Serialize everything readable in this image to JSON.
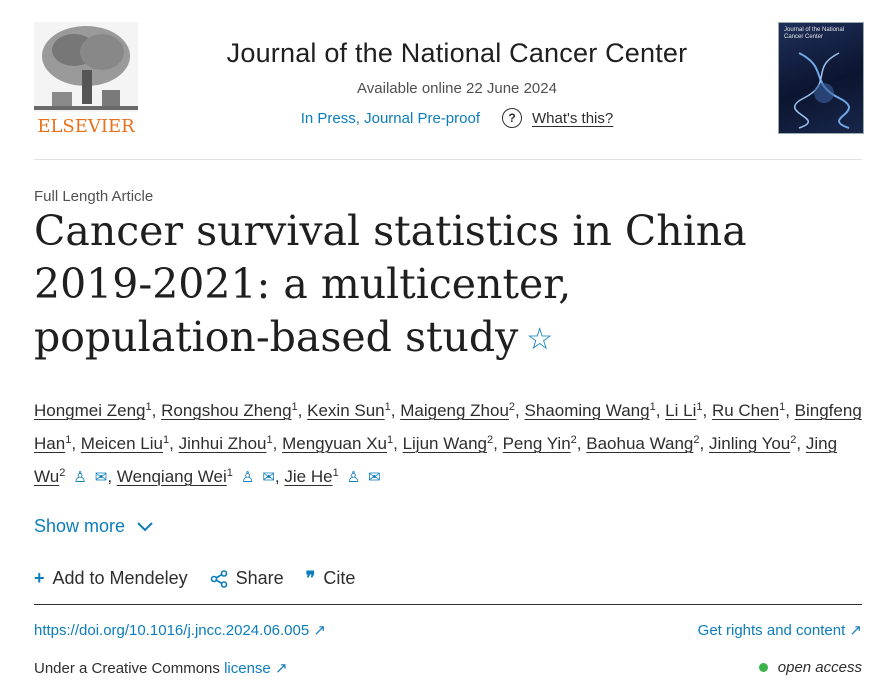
{
  "header": {
    "publisher": "ELSEVIER",
    "journal_title": "Journal of the National Cancer Center",
    "available_online": "Available online 22 June 2024",
    "press_status": "In Press, Journal Pre-proof",
    "whats_this": "What's this?",
    "cover_text": "Journal of the National Cancer Center"
  },
  "article": {
    "type": "Full Length Article",
    "title": "Cancer survival statistics in China 2019-2021: a multicenter, population-based study",
    "star_icon": "☆"
  },
  "authors": [
    {
      "name": "Hongmei Zeng",
      "sup": "1",
      "sep": ","
    },
    {
      "name": "Rongshou Zheng",
      "sup": "1",
      "sep": ","
    },
    {
      "name": "Kexin Sun",
      "sup": "1",
      "sep": ","
    },
    {
      "name": "Maigeng Zhou",
      "sup": "2",
      "sep": ","
    },
    {
      "name": "Shaoming Wang",
      "sup": "1",
      "sep": ","
    },
    {
      "name": "Li Li",
      "sup": "1",
      "sep": ","
    },
    {
      "name": "Ru Chen",
      "sup": "1",
      "sep": ","
    },
    {
      "name": "Bingfeng Han",
      "sup": "1",
      "sep": ","
    },
    {
      "name": "Meicen Liu",
      "sup": "1",
      "sep": ","
    },
    {
      "name": "Jinhui Zhou",
      "sup": "1",
      "sep": ","
    },
    {
      "name": "Mengyuan Xu",
      "sup": "1",
      "sep": ","
    },
    {
      "name": "Lijun Wang",
      "sup": "2",
      "sep": ","
    },
    {
      "name": "Peng Yin",
      "sup": "2",
      "sep": ","
    },
    {
      "name": "Baohua Wang",
      "sup": "2",
      "sep": ","
    },
    {
      "name": "Jinling You",
      "sup": "2",
      "sep": ","
    },
    {
      "name": "Jing Wu",
      "sup": "2",
      "sep": ","
    },
    {
      "name": "Wenqiang Wei",
      "sup": "1",
      "sep": ","
    },
    {
      "name": "Jie He",
      "sup": "1",
      "sep": ""
    }
  ],
  "show_more": "Show more",
  "actions": {
    "mendeley": "Add to Mendeley",
    "share": "Share",
    "cite": "Cite"
  },
  "footer": {
    "doi": "https://doi.org/10.1016/j.jncc.2024.06.005",
    "rights": "Get rights and content",
    "cc_prefix": "Under a Creative Commons",
    "cc_link": "license",
    "open_access": "open access"
  },
  "colors": {
    "link": "#0c7dbb",
    "elsevier": "#e9711c",
    "open_access_dot": "#3bb34a"
  }
}
